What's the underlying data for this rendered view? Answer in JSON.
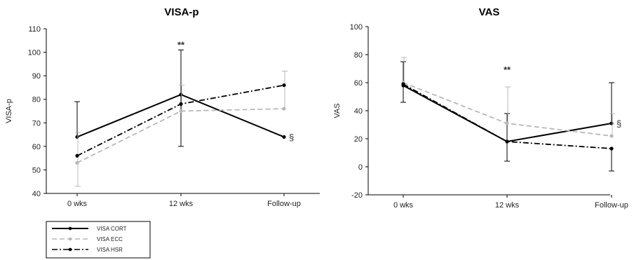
{
  "chart_data": [
    {
      "type": "line",
      "title": "VISA-p",
      "ylabel": "VISA-p",
      "xlabel": "",
      "categories": [
        "0 wks",
        "12 wks",
        "Follow-up"
      ],
      "ylim": [
        40,
        110
      ],
      "yticks": [
        40,
        50,
        60,
        70,
        80,
        90,
        100,
        110
      ],
      "grid": false,
      "series": [
        {
          "name": "VISA CORT",
          "values": [
            64,
            82,
            64
          ],
          "color": "#000000",
          "style": "solid",
          "err_upper": [
            79,
            101,
            null
          ],
          "err_lower": [
            null,
            60,
            null
          ]
        },
        {
          "name": "VISA ECC",
          "values": [
            53,
            75,
            76
          ],
          "color": "#b8b8b8",
          "style": "dashed",
          "err_upper": [
            66,
            86,
            92
          ],
          "err_lower": [
            43,
            null,
            null
          ]
        },
        {
          "name": "VISA HSR",
          "values": [
            56,
            78,
            86
          ],
          "color": "#000000",
          "style": "dashdot",
          "err_upper": [
            null,
            null,
            null
          ],
          "err_lower": [
            null,
            null,
            null
          ]
        }
      ],
      "annotations": [
        {
          "text": "**",
          "category": "12 wks",
          "value": 103
        },
        {
          "text": "§",
          "category": "Follow-up",
          "value": 64
        }
      ]
    },
    {
      "type": "line",
      "title": "VAS",
      "ylabel": "VAS",
      "xlabel": "",
      "categories": [
        "0 wks",
        "12 wks",
        "Follow-up"
      ],
      "ylim": [
        -20,
        100
      ],
      "yticks": [
        -20,
        0,
        20,
        40,
        60,
        80,
        100
      ],
      "grid": false,
      "series": [
        {
          "name": "VISA CORT",
          "values": [
            58,
            18,
            31
          ],
          "color": "#000000",
          "style": "solid",
          "err_upper": [
            75,
            38,
            60
          ],
          "err_lower": [
            46,
            4,
            null
          ]
        },
        {
          "name": "VISA ECC",
          "values": [
            60,
            31,
            22
          ],
          "color": "#b8b8b8",
          "style": "dashed",
          "err_upper": [
            78,
            57,
            38
          ],
          "err_lower": [
            null,
            null,
            null
          ]
        },
        {
          "name": "VISA HSR",
          "values": [
            59,
            18,
            13
          ],
          "color": "#000000",
          "style": "dashdot",
          "err_upper": [
            null,
            null,
            null
          ],
          "err_lower": [
            null,
            null,
            -3
          ]
        }
      ],
      "annotations": [
        {
          "text": "**",
          "category": "12 wks",
          "value": 69
        },
        {
          "text": "§",
          "category": "Follow-up",
          "value": 31
        }
      ]
    }
  ],
  "legend": {
    "placement": "bottom-left",
    "entries": [
      {
        "label": "VISA CORT",
        "color": "#000000",
        "style": "solid"
      },
      {
        "label": "VISA ECC",
        "color": "#b8b8b8",
        "style": "dashed"
      },
      {
        "label": "VISA HSR",
        "color": "#000000",
        "style": "dashdot"
      }
    ]
  }
}
